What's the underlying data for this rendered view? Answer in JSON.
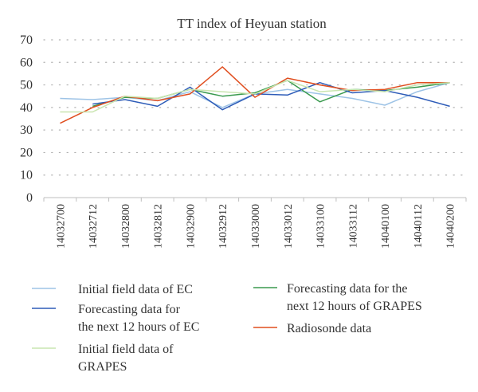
{
  "chart_data": {
    "type": "line",
    "title": "TT index of Heyuan station",
    "xlabel": "",
    "ylabel": "",
    "ylim": [
      0,
      70
    ],
    "yticks": [
      0,
      10,
      20,
      30,
      40,
      50,
      60,
      70
    ],
    "grid": "horizontal dotted",
    "legend_position": "bottom",
    "categories": [
      "14032700",
      "14032712",
      "14032800",
      "14032812",
      "14032900",
      "14032912",
      "14033000",
      "14033012",
      "14033100",
      "14033112",
      "14040100",
      "14040112",
      "14040200"
    ],
    "series": [
      {
        "name": "Initial field data of EC",
        "color": "#9dc3e6",
        "values": [
          44,
          43.5,
          44.5,
          43,
          47,
          40,
          46,
          48,
          46,
          44,
          41,
          47,
          51
        ]
      },
      {
        "name": "Forecasting data for the next 12 hours of GRAPES",
        "color": "#3a9a4e",
        "values": [
          null,
          40.5,
          44.5,
          44,
          48,
          45,
          46.5,
          52,
          42.5,
          48,
          47.5,
          49,
          51
        ]
      },
      {
        "name": "Forecasting data for the next 12 hours of EC",
        "color": "#2e5cb8",
        "values": [
          null,
          41.5,
          43.5,
          40.5,
          49,
          39,
          46,
          45.5,
          51,
          46.5,
          47.5,
          44.5,
          40.5
        ]
      },
      {
        "name": "Radiosonde data",
        "color": "#e04e1f",
        "values": [
          33,
          40,
          45,
          43,
          46,
          58,
          44.5,
          53,
          50,
          47.5,
          48,
          51,
          51
        ]
      },
      {
        "name": "Initial field data of GRAPES",
        "color": "#c9e5b0",
        "values": [
          38,
          38,
          45,
          44,
          48,
          47,
          46,
          52,
          47,
          48,
          47,
          50,
          51
        ]
      }
    ],
    "legend": [
      {
        "series": 0,
        "label_lines": [
          "Initial field data of EC"
        ]
      },
      {
        "series": 1,
        "label_lines": [
          "Forecasting data for the",
          "next 12 hours of GRAPES"
        ]
      },
      {
        "series": 2,
        "label_lines": [
          "Forecasting data for",
          "the next 12 hours of EC"
        ]
      },
      {
        "series": 3,
        "label_lines": [
          "Radiosonde data"
        ]
      },
      {
        "series": 4,
        "label_lines": [
          "Initial field data of",
          "GRAPES"
        ]
      }
    ]
  }
}
